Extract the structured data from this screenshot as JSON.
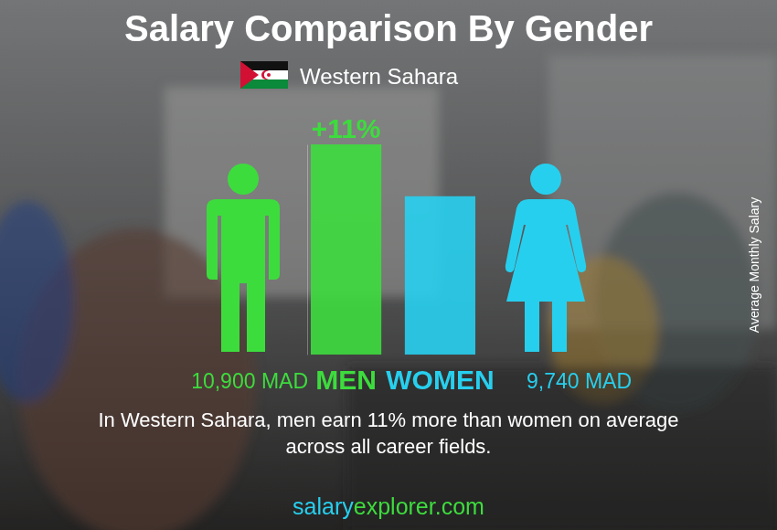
{
  "chart_data": {
    "type": "bar",
    "title": "Salary Comparison By Gender",
    "subtitle": "Western Sahara",
    "categories": [
      "MEN",
      "WOMEN"
    ],
    "values": [
      10900,
      9740
    ],
    "value_labels": [
      "10,900 MAD",
      "9,740 MAD"
    ],
    "colors": [
      "#3ddc3d",
      "#27cfee"
    ],
    "ylim": [
      6200,
      10900
    ],
    "y_label": "Average Monthly Salary",
    "annotations": [
      "+11%"
    ],
    "caption": [
      "In Western Sahara, men earn 11% more than women on average",
      "across all career fields."
    ],
    "source": "salaryexplorer.com",
    "data_labels": true,
    "tick_labels": false
  }
}
